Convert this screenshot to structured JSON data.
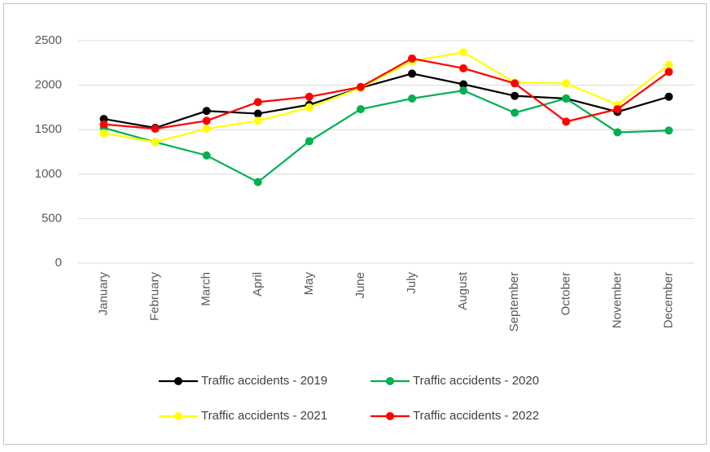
{
  "chart_data": {
    "type": "line",
    "categories": [
      "January",
      "February",
      "March",
      "April",
      "May",
      "June",
      "July",
      "August",
      "September",
      "October",
      "November",
      "December"
    ],
    "series": [
      {
        "name": "Traffic accidents - 2019",
        "color": "#000000",
        "values": [
          1620,
          1520,
          1710,
          1680,
          1780,
          1970,
          2130,
          2010,
          1880,
          1850,
          1700,
          1870
        ]
      },
      {
        "name": "Traffic accidents - 2020",
        "color": "#00b050",
        "values": [
          1520,
          1360,
          1210,
          910,
          1370,
          1730,
          1850,
          1940,
          1690,
          1850,
          1470,
          1490
        ]
      },
      {
        "name": "Traffic accidents - 2021",
        "color": "#ffff00",
        "values": [
          1460,
          1360,
          1510,
          1600,
          1750,
          1970,
          2270,
          2370,
          2030,
          2020,
          1780,
          2230
        ]
      },
      {
        "name": "Traffic accidents - 2022",
        "color": "#ff0000",
        "values": [
          1560,
          1510,
          1600,
          1810,
          1870,
          1980,
          2300,
          2190,
          2020,
          1590,
          1730,
          2150
        ]
      }
    ],
    "ylim": [
      0,
      2500
    ],
    "yticks": [
      0,
      500,
      1000,
      1500,
      2000,
      2500
    ],
    "grid": true
  }
}
